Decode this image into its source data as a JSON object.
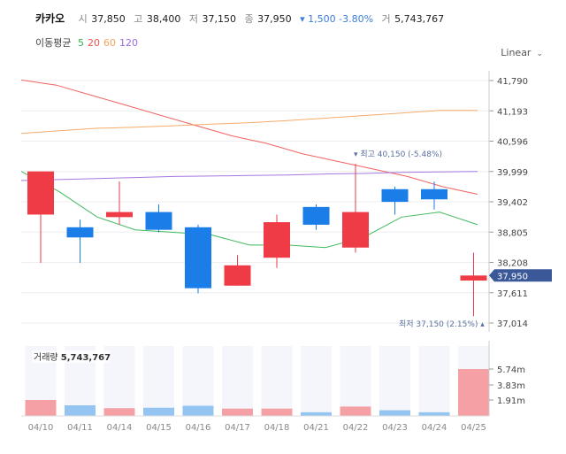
{
  "header": {
    "name": "카카오",
    "open_label": "시",
    "open": "37,850",
    "high_label": "고",
    "high": "38,400",
    "low_label": "저",
    "low": "37,150",
    "close_label": "종",
    "close": "37,950",
    "change": "▾ 1,500 -3.80%",
    "volume_label": "거",
    "volume": "5,743,767"
  },
  "ma_legend": {
    "title": "이동평균",
    "items": [
      {
        "label": "5",
        "color": "#2bb24c"
      },
      {
        "label": "20",
        "color": "#ef5350"
      },
      {
        "label": "60",
        "color": "#f5a35c"
      },
      {
        "label": "120",
        "color": "#9c6ade"
      }
    ]
  },
  "scale_selector": {
    "label": "Linear"
  },
  "price_label": {
    "value": "37,950",
    "color": "#3b5998"
  },
  "volume_panel": {
    "label": "거래량",
    "value": "5,743,767"
  },
  "colors": {
    "up": "#ef3b46",
    "down": "#1a7de8",
    "vol_up": "#f4a0a4",
    "vol_down": "#94c4f2"
  },
  "chart_data": {
    "type": "candlestick",
    "dates": [
      "04/10",
      "04/11",
      "04/14",
      "04/15",
      "04/16",
      "04/17",
      "04/18",
      "04/21",
      "04/22",
      "04/23",
      "04/24",
      "04/25"
    ],
    "ohlc": [
      [
        39150,
        40000,
        38200,
        40000
      ],
      [
        38900,
        39050,
        38200,
        38700
      ],
      [
        39100,
        39800,
        38950,
        39200
      ],
      [
        39200,
        39350,
        38800,
        38850
      ],
      [
        38900,
        38950,
        37600,
        37700
      ],
      [
        37750,
        38350,
        37750,
        38150
      ],
      [
        38300,
        39150,
        38100,
        39000
      ],
      [
        39300,
        39350,
        38850,
        38950
      ],
      [
        38500,
        40150,
        38400,
        39200
      ],
      [
        39650,
        39700,
        39150,
        39400
      ],
      [
        39650,
        39800,
        39250,
        39450
      ],
      [
        37850,
        38400,
        37150,
        37950
      ]
    ],
    "volume": [
      1950000,
      1300000,
      950000,
      1000000,
      1250000,
      900000,
      900000,
      450000,
      1150000,
      700000,
      450000,
      5743767
    ],
    "y_ticks": [
      "41,790",
      "41,193",
      "40,596",
      "39,999",
      "39,402",
      "38,805",
      "38,208",
      "37,611",
      "37,014"
    ],
    "y_range": [
      37014,
      41790
    ],
    "volume_ticks": [
      "5.74m",
      "3.83m",
      "1.91m"
    ],
    "volume_max": 5743767,
    "moving_averages": [
      {
        "period": "5",
        "values": [
          40000,
          39600,
          39100,
          38850,
          38800,
          38750,
          38550,
          38550,
          38500,
          38700,
          39100,
          39200,
          38950
        ]
      },
      {
        "period": "20",
        "values": [
          41800,
          41700,
          41500,
          41300,
          41100,
          40900,
          40700,
          40550,
          40350,
          40200,
          40050,
          39900,
          39700,
          39550
        ]
      },
      {
        "period": "60",
        "values": [
          40750,
          40800,
          40850,
          40870,
          40900,
          40930,
          40960,
          41000,
          41050,
          41100,
          41150,
          41200,
          41200
        ]
      },
      {
        "period": "120",
        "values": [
          39820,
          39840,
          39860,
          39880,
          39900,
          39910,
          39920,
          39930,
          39950,
          39960,
          39980,
          39990,
          40000
        ]
      }
    ],
    "annotations": {
      "max": "▾ 최고 40,150 (-5.48%)",
      "min": "최저 37,150 (2.15%) ▴"
    }
  }
}
